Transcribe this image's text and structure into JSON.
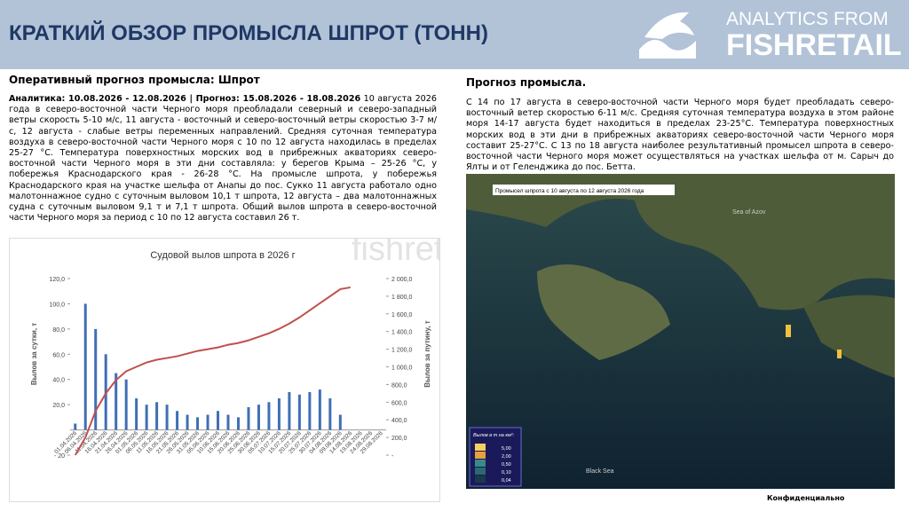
{
  "header": {
    "title": "КРАТКИЙ ОБЗОР ПРОМЫСЛА ШПРОТ (ТОНН)",
    "logo_top": "ANALYTICS FROM",
    "logo_bottom": "FISHRETAIL"
  },
  "left": {
    "heading": "Оперативный прогноз промысла: Шпрот",
    "lead": "Аналитика: 10.08.2026 - 12.08.2026 | Прогноз: 15.08.2026 - 18.08.2026",
    "body": "10 августа 2026 года в северо-восточной части Черного моря преобладали северный и северо-западный ветры скорость 5-10 м/с, 11 августа - восточный и северо-восточный ветры скоростью 3-7 м/с, 12 августа - слабые ветры переменных направлений. Средняя суточная температура воздуха в северо-восточной части Черного моря с 10 по 12 августа находилась в пределах 25-27 °С. Температура поверхностных морских вод в прибрежных акваториях северо-восточной части Черного моря в эти дни составляла: у берегов Крыма – 25-26 °С, у побережья Краснодарского края - 26-28 °С.  На промысле шпрота, у побережья Краснодарского края на участке шельфа от Анапы до пос. Сукко 11 августа работало одно малотоннажное судно с суточным выловом 10,1 т шпрота, 12 августа – два малотоннажных судна с суточным выловом 9,1 т и 7,1 т шпрота. Общий вылов шпрота в северо-восточной части Черного моря за период с 10 по 12 августа составил 26 т."
  },
  "chart": {
    "type": "bar-line",
    "title": "Судовой вылов шпрота в 2026 г",
    "watermark": "fishretail",
    "y_label": "Вылов за сутки,  т",
    "y2_label": "Вылов за путину,  т",
    "categories": [
      "01.04.2026",
      "06.04.2026",
      "11.04.2026",
      "16.04.2026",
      "21.04.2026",
      "26.04.2026",
      "01.05.2026",
      "06.05.2026",
      "11.05.2026",
      "16.05.2026",
      "21.05.2026",
      "26.05.2026",
      "31.05.2026",
      "05.06.2026",
      "10.06.2026",
      "15.06.2026",
      "20.06.2026",
      "25.06.2026",
      "30.06.2026",
      "05.07.2026",
      "10.07.2026",
      "15.07.2026",
      "20.07.2026",
      "25.07.2026",
      "30.07.2026",
      "04.08.2026",
      "09.08.2026",
      "14.08.2026",
      "19.08.2026",
      "24.08.2026",
      "29.08.2026"
    ],
    "series": [
      {
        "name": "daily",
        "color": "#3f6fb5",
        "values": [
          5,
          100,
          80,
          60,
          45,
          40,
          25,
          20,
          22,
          20,
          15,
          12,
          10,
          12,
          15,
          12,
          10,
          18,
          20,
          22,
          25,
          30,
          28,
          30,
          32,
          25,
          12,
          null,
          null,
          null,
          null
        ]
      },
      {
        "name": "cumulative",
        "color": "#c0504d",
        "axis": "y2",
        "values": [
          0,
          200,
          500,
          700,
          850,
          950,
          1000,
          1050,
          1080,
          1100,
          1120,
          1150,
          1180,
          1200,
          1220,
          1250,
          1270,
          1300,
          1340,
          1380,
          1430,
          1490,
          1560,
          1640,
          1720,
          1800,
          1880,
          1900,
          null,
          null,
          null
        ]
      }
    ],
    "ylim": [
      -20,
      120
    ],
    "yticks": [
      {
        "value": 120,
        "label": "120,0"
      },
      {
        "value": 100,
        "label": "100,0"
      },
      {
        "value": 80,
        "label": "80,0"
      },
      {
        "value": 60,
        "label": "60,0"
      },
      {
        "value": 40,
        "label": "40,0"
      },
      {
        "value": 20,
        "label": "20,0"
      },
      {
        "value": -20,
        "label": "- 20"
      }
    ],
    "y2lim": [
      0,
      2000
    ],
    "y2ticks": [
      {
        "value": 0,
        "label": "-"
      },
      {
        "value": 200,
        "label": "200,0"
      },
      {
        "value": 400,
        "label": "400,0"
      },
      {
        "value": 600,
        "label": "600,0"
      },
      {
        "value": 800,
        "label": "800,0"
      },
      {
        "value": 1000,
        "label": "1 000,0"
      },
      {
        "value": 1200,
        "label": "1 200,0"
      },
      {
        "value": 1400,
        "label": "1 400,0"
      },
      {
        "value": 1600,
        "label": "1 600,0"
      },
      {
        "value": 1800,
        "label": "1 800,0"
      },
      {
        "value": 2000,
        "label": "2 000,0"
      }
    ]
  },
  "right": {
    "heading": "Прогноз промысла.",
    "body": "С 14 по 17 августа в северо-восточной части Черного моря будет преобладать  северо-восточный ветер скоростью 6-11 м/с. Средняя суточная температура воздуха в этом районе моря 14-17 августа будет находиться в пределах 23-25°С. Температура поверхностных морских вод в эти дни в прибрежных акваториях северо-восточной части Черного моря составит 25-27°С. С 13 по 18 августа наиболее результативный промысел шпрота в северо-восточной части Черного моря может осуществляться на участках шельфа от м. Сарыч до Ялты и от Геленджика до пос. Бетта."
  },
  "map": {
    "title": "Промысел шпрота с 10 августа по 12 августа 2026 года",
    "sea_north": "Sea of Azov",
    "sea_south": "Black Sea",
    "legend_title": "Вылов в т на км²:",
    "legend": [
      "5,00",
      "2,00",
      "0,50",
      "0,10",
      "0,04"
    ]
  },
  "footer": "Конфиденциально"
}
